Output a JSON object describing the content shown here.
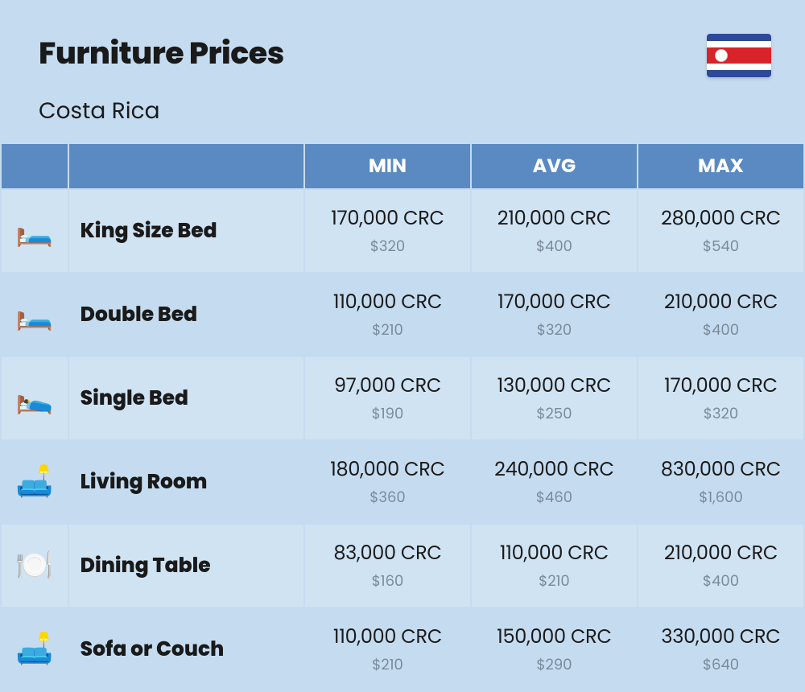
{
  "header": {
    "title": "Furniture Prices",
    "subtitle": "Costa Rica"
  },
  "flag": {
    "colors": {
      "blue": "#2e4999",
      "white": "#ffffff",
      "red": "#d8232a"
    }
  },
  "table": {
    "columns": [
      "MIN",
      "AVG",
      "MAX"
    ],
    "row_colors": {
      "even": "#d0e3f3",
      "odd": "#c5dcf0"
    },
    "header_bg": "#5a8ac1",
    "header_fg": "#ffffff",
    "secondary_color": "#7a8a9a",
    "rows": [
      {
        "icon": "🛏️",
        "name": "King Size Bed",
        "min_primary": "170,000 CRC",
        "min_secondary": "$320",
        "avg_primary": "210,000 CRC",
        "avg_secondary": "$400",
        "max_primary": "280,000 CRC",
        "max_secondary": "$540"
      },
      {
        "icon": "🛏️",
        "name": "Double Bed",
        "min_primary": "110,000 CRC",
        "min_secondary": "$210",
        "avg_primary": "170,000 CRC",
        "avg_secondary": "$320",
        "max_primary": "210,000 CRC",
        "max_secondary": "$400"
      },
      {
        "icon": "🛌",
        "name": "Single Bed",
        "min_primary": "97,000 CRC",
        "min_secondary": "$190",
        "avg_primary": "130,000 CRC",
        "avg_secondary": "$250",
        "max_primary": "170,000 CRC",
        "max_secondary": "$320"
      },
      {
        "icon": "🛋️",
        "name": "Living Room",
        "min_primary": "180,000 CRC",
        "min_secondary": "$360",
        "avg_primary": "240,000 CRC",
        "avg_secondary": "$460",
        "max_primary": "830,000 CRC",
        "max_secondary": "$1,600"
      },
      {
        "icon": "🍽️",
        "name": "Dining Table",
        "min_primary": "83,000 CRC",
        "min_secondary": "$160",
        "avg_primary": "110,000 CRC",
        "avg_secondary": "$210",
        "max_primary": "210,000 CRC",
        "max_secondary": "$400"
      },
      {
        "icon": "🛋️",
        "name": "Sofa or Couch",
        "min_primary": "110,000 CRC",
        "min_secondary": "$210",
        "avg_primary": "150,000 CRC",
        "avg_secondary": "$290",
        "max_primary": "330,000 CRC",
        "max_secondary": "$640"
      }
    ]
  }
}
